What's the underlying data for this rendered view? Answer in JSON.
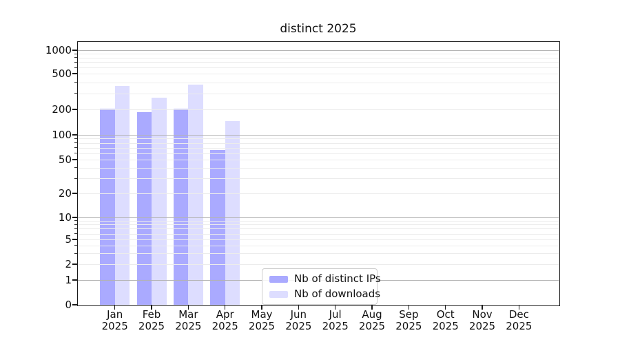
{
  "figure": {
    "title": "distinct 2025"
  },
  "chart_data": {
    "type": "bar",
    "title": "distinct 2025",
    "categories": [
      "Jan 2025",
      "Feb 2025",
      "Mar 2025",
      "Apr 2025",
      "May 2025",
      "Jun 2025",
      "Jul 2025",
      "Aug 2025",
      "Sep 2025",
      "Oct 2025",
      "Nov 2025",
      "Dec 2025"
    ],
    "months": [
      "Jan",
      "Feb",
      "Mar",
      "Apr",
      "May",
      "Jun",
      "Jul",
      "Aug",
      "Sep",
      "Oct",
      "Nov",
      "Dec"
    ],
    "year": "2025",
    "series": [
      {
        "name": "Nb of distinct IPs",
        "color": "#aaaaff",
        "values": [
          205,
          185,
          205,
          65,
          null,
          null,
          null,
          null,
          null,
          null,
          null,
          null
        ]
      },
      {
        "name": "Nb of downloads",
        "color": "#ddddff",
        "values": [
          365,
          270,
          380,
          145,
          null,
          null,
          null,
          null,
          null,
          null,
          null,
          null
        ]
      }
    ],
    "xlabel": "",
    "ylabel": "",
    "yscale": "symlog",
    "ylim": [
      0,
      1000
    ],
    "yticks": [
      0,
      1,
      2,
      5,
      10,
      20,
      50,
      100,
      200,
      500,
      1000
    ],
    "grid": "horizontal-log-minors-drawn-over-bars",
    "legend_position": "lower-center"
  },
  "colors": {
    "bar_distinct_ips": "#aaaaff",
    "bar_downloads": "#ddddff",
    "major_grid": "#b3b3b3",
    "minor_grid": "#ececec",
    "spine": "#1a1a1a",
    "background": "#ffffff",
    "text": "#111111",
    "legend_border": "#cccccc"
  }
}
